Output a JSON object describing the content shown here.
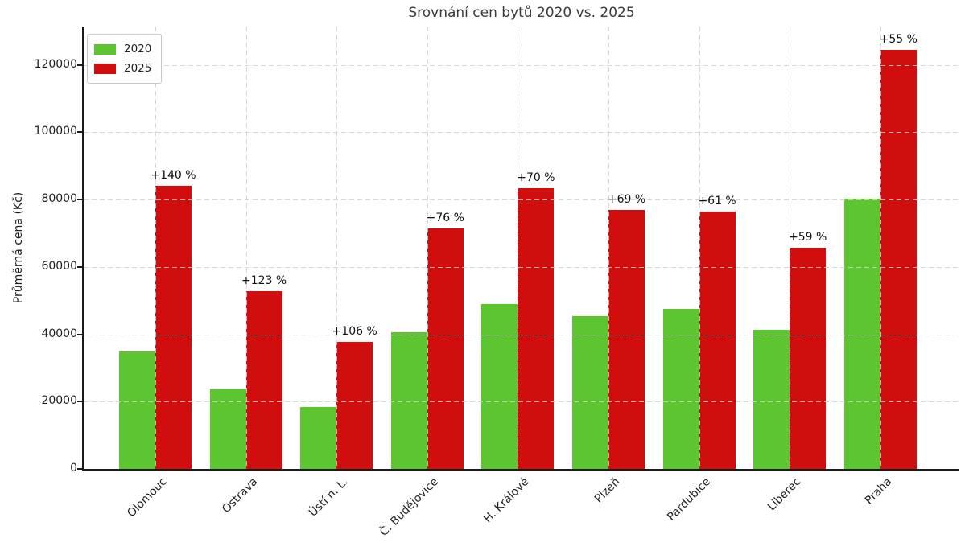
{
  "title": "Srovnání cen bytů 2020 vs. 2025",
  "chart_data": {
    "type": "bar",
    "title": "Srovnání cen bytů 2020 vs. 2025",
    "xlabel": "",
    "ylabel": "Průměrná cena (Kč)",
    "categories": [
      "Olomouc",
      "Ostrava",
      "Ústí n. L.",
      "Č. Budějovice",
      "H. Králové",
      "Plzeň",
      "Pardubice",
      "Liberec",
      "Praha"
    ],
    "series": [
      {
        "name": "2020",
        "color": "#5cc52f",
        "values": [
          35000,
          23700,
          18300,
          40600,
          49000,
          45500,
          47500,
          41300,
          80300
        ]
      },
      {
        "name": "2025",
        "color": "#d00e0e",
        "values": [
          84000,
          52900,
          37700,
          71500,
          83300,
          76900,
          76500,
          65700,
          124500
        ]
      }
    ],
    "annotations": [
      "+140 %",
      "+123 %",
      "+106 %",
      "+76 %",
      "+70 %",
      "+69 %",
      "+61 %",
      "+59 %",
      "+55 %"
    ],
    "yticks": [
      0,
      20000,
      40000,
      60000,
      80000,
      100000,
      120000
    ],
    "ylim": [
      0,
      131400
    ],
    "grid": true,
    "grid_style": "dashed",
    "legend_position": "upper left",
    "colors": {
      "bar_2020": "#5cc52f",
      "bar_2025": "#d00e0e",
      "grid": "#d1d1d1",
      "axis": "#1a1a1a",
      "text": "#1f1f1f"
    }
  }
}
